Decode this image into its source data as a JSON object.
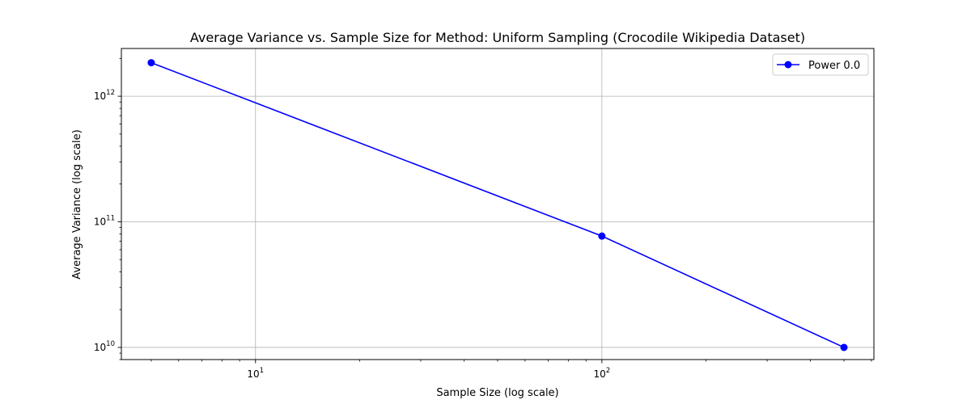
{
  "chart_data": {
    "type": "line",
    "title": "Average Variance vs. Sample Size for Method: Uniform Sampling (Crocodile Wikipedia Dataset)",
    "xlabel": "Sample Size (log scale)",
    "ylabel": "Average Variance (log scale)",
    "x_scale": "log",
    "y_scale": "log",
    "xlim": [
      4.1,
      610
    ],
    "ylim": [
      8000000000.0,
      2400000000000.0
    ],
    "x_major_ticks": [
      {
        "value": 10,
        "base": "10",
        "exp": "1"
      },
      {
        "value": 100,
        "base": "10",
        "exp": "2"
      }
    ],
    "y_major_ticks": [
      {
        "value": 10000000000.0,
        "base": "10",
        "exp": "10"
      },
      {
        "value": 100000000000.0,
        "base": "10",
        "exp": "11"
      },
      {
        "value": 1000000000000.0,
        "base": "10",
        "exp": "12"
      }
    ],
    "grid": true,
    "legend_position": "top-right",
    "series": [
      {
        "name": "Power 0.0",
        "color": "#0000ff",
        "marker": "circle",
        "x": [
          5,
          100,
          500
        ],
        "y": [
          1850000000000.0,
          77000000000.0,
          10000000000.0
        ]
      }
    ]
  }
}
